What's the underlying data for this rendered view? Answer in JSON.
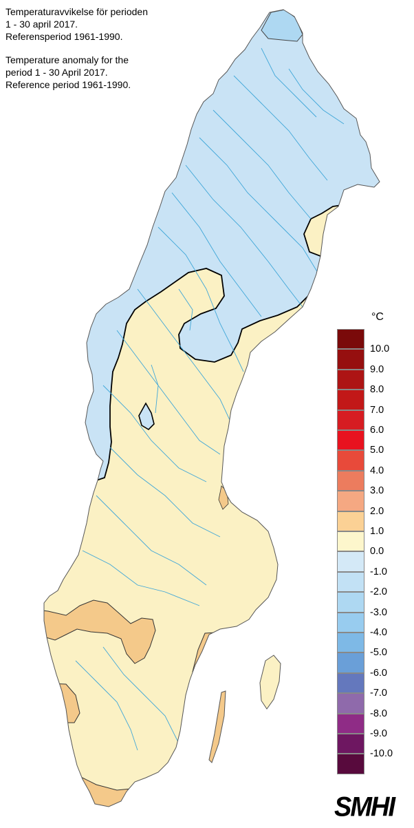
{
  "titles": {
    "sv_line1": "Temperaturavvikelse för perioden",
    "sv_line2": "1 - 30 april 2017.",
    "sv_line3": "Referensperiod 1961-1990.",
    "en_line1": "Temperature anomaly for the",
    "en_line2": "period 1 - 30 April 2017.",
    "en_line3": "Reference period 1961-1990."
  },
  "legend": {
    "unit": "°C",
    "swatch_colors": [
      "#7a0a0a",
      "#960f0f",
      "#ad1414",
      "#c21818",
      "#d61c22",
      "#e8121f",
      "#e84a3a",
      "#ec7c5e",
      "#f5a882",
      "#fbd195",
      "#fdf6cc",
      "#d4e9f7",
      "#c2e1f5",
      "#aed8f2",
      "#98ccef",
      "#7eb9e6",
      "#6a9fd8",
      "#6478bd",
      "#8f6aab",
      "#8f2c86",
      "#6e1761",
      "#580a3d"
    ],
    "ticks": [
      "10.0",
      "9.0",
      "8.0",
      "7.0",
      "6.0",
      "5.0",
      "4.0",
      "3.0",
      "2.0",
      "1.0",
      "0.0",
      "-1.0",
      "-2.0",
      "-3.0",
      "-4.0",
      "-5.0",
      "-6.0",
      "-7.0",
      "-8.0",
      "-9.0",
      "-10.0"
    ]
  },
  "colors": {
    "anomaly_minus1_to_0": "#c9e3f5",
    "anomaly_0_to_1": "#fbf1c4",
    "anomaly_1_to_2": "#f4c98a",
    "anomaly_minus2_to_minus1": "#aed8f2",
    "rivers": "#3ea6d8"
  },
  "logo": "SMHI"
}
